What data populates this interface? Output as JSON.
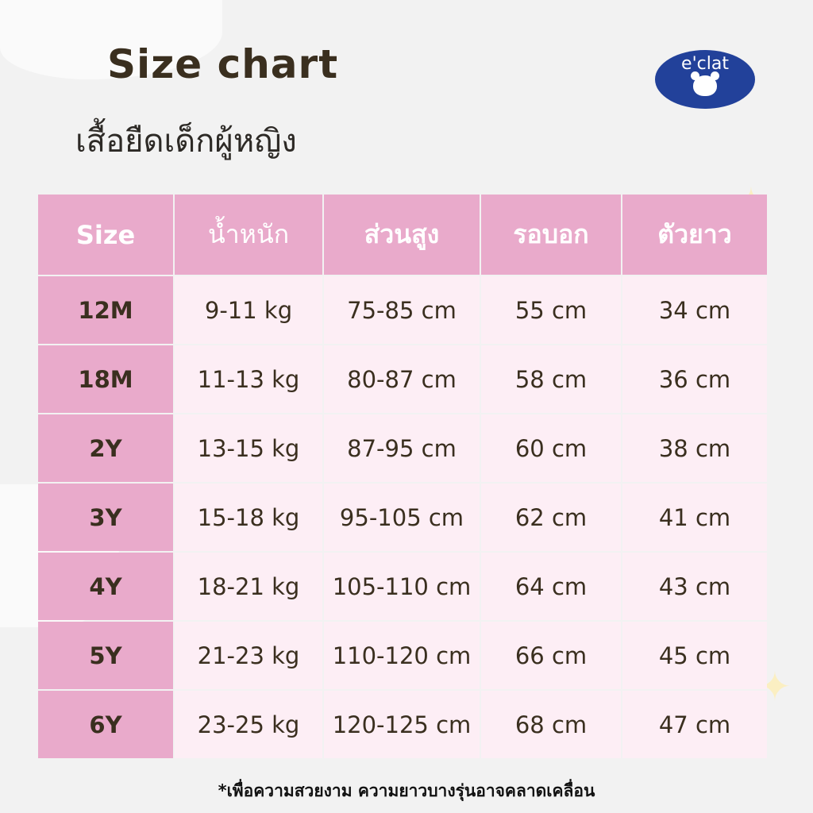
{
  "title": "Size chart",
  "subtitle": "เสื้อยืดเด็กผู้หญิง",
  "logo": {
    "text": "e'clat"
  },
  "colors": {
    "header": "#e9aacb",
    "cell": "#fdeef5",
    "text": "#3a2f1f",
    "logo": "#22419a"
  },
  "table": {
    "headers": [
      "Size",
      "น้ำหนัก",
      "ส่วนสูง",
      "รอบอก",
      "ตัวยาว"
    ],
    "rows": [
      [
        "12M",
        "9-11 kg",
        "75-85 cm",
        "55 cm",
        "34 cm"
      ],
      [
        "18M",
        "11-13 kg",
        "80-87 cm",
        "58 cm",
        "36 cm"
      ],
      [
        "2Y",
        "13-15 kg",
        "87-95 cm",
        "60 cm",
        "38 cm"
      ],
      [
        "3Y",
        "15-18 kg",
        "95-105 cm",
        "62 cm",
        "41 cm"
      ],
      [
        "4Y",
        "18-21 kg",
        "105-110 cm",
        "64 cm",
        "43 cm"
      ],
      [
        "5Y",
        "21-23 kg",
        "110-120 cm",
        "66 cm",
        "45 cm"
      ],
      [
        "6Y",
        "23-25 kg",
        "120-125 cm",
        "68 cm",
        "47 cm"
      ]
    ]
  },
  "note": "*เพื่อความสวยงาม ความยาวบางรุ่นอาจคลาดเคลื่อน"
}
